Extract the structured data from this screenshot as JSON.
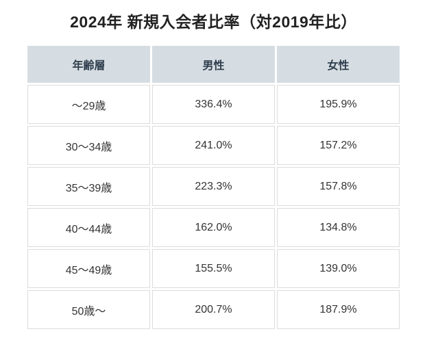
{
  "title": "2024年 新規入会者比率（対2019年比）",
  "colors": {
    "header_background": "#d6dde2",
    "header_text": "#2f3e4e",
    "cell_border": "#dcdcdc",
    "body_text": "#333333",
    "title_text": "#222222",
    "page_background": "#ffffff"
  },
  "table": {
    "headers": [
      "年齢層",
      "男性",
      "女性"
    ],
    "rows": [
      [
        "～29歳",
        "336.4%",
        "195.9%"
      ],
      [
        "30～34歳",
        "241.0%",
        "157.2%"
      ],
      [
        "35～39歳",
        "223.3%",
        "157.8%"
      ],
      [
        "40～44歳",
        "162.0%",
        "134.8%"
      ],
      [
        "45～49歳",
        "155.5%",
        "139.0%"
      ],
      [
        "50歳～",
        "200.7%",
        "187.9%"
      ]
    ]
  },
  "chart_data": {
    "type": "table",
    "title": "2024年 新規入会者比率（対2019年比）",
    "columns": [
      "年齢層",
      "男性",
      "女性"
    ],
    "categories": [
      "～29歳",
      "30～34歳",
      "35～39歳",
      "40～44歳",
      "45～49歳",
      "50歳～"
    ],
    "series": [
      {
        "name": "男性",
        "unit": "%",
        "values": [
          336.4,
          241.0,
          223.3,
          162.0,
          155.5,
          200.7
        ]
      },
      {
        "name": "女性",
        "unit": "%",
        "values": [
          195.9,
          157.2,
          157.8,
          134.8,
          139.0,
          187.9
        ]
      }
    ],
    "legend_position": "none",
    "grid": true
  }
}
